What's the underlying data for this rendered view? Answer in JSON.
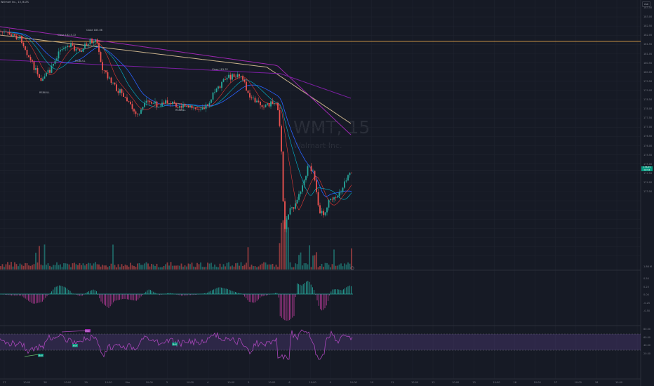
{
  "header": {
    "title": "Walmart Inc., 15, BATS",
    "currency_button": "USD"
  },
  "watermark": {
    "symbol": "WMT, 15",
    "name": "Walmart Inc."
  },
  "price_axis": {
    "labels": [
      "183.50",
      "183.00",
      "182.50",
      "182.00",
      "181.50",
      "181.00",
      "180.50",
      "180.00",
      "179.50",
      "179.00",
      "178.50",
      "178.00",
      "177.50",
      "177.00",
      "176.50",
      "176.00",
      "175.50",
      "175.00",
      "174.50",
      "174.00",
      "173.50"
    ],
    "last_price": "176.35",
    "last_price_sub": "02:54"
  },
  "volume_axis": {
    "labels": [
      "1.86 M"
    ]
  },
  "macd_axis": {
    "labels": [
      "0.50",
      "0.25",
      "0.00",
      "-0.25",
      "-0.50"
    ]
  },
  "rsi_axis": {
    "labels": [
      "80.00",
      "60.00",
      "40.00",
      "20.00"
    ]
  },
  "time_axis": {
    "labels": [
      "27",
      "10:00",
      "28",
      "10:00",
      "29",
      "10:00",
      "Mar",
      "10:00",
      "3",
      "10:00",
      "4",
      "10:00",
      "5",
      "10:00",
      "6",
      "10:00",
      "9",
      "10:00",
      "10",
      "11",
      "10:00",
      "12",
      "10:00",
      "13",
      "10:00",
      "16",
      "10:00",
      "17",
      "10:00",
      "18",
      "10:00"
    ]
  },
  "annotations": [
    {
      "text": "Close 182.5.72",
      "id": "ann-1"
    },
    {
      "text": "Close 183.06",
      "id": "ann-2"
    },
    {
      "text": "RSIBULL",
      "id": "ann-3"
    },
    {
      "text": "RSIBULL",
      "id": "ann-4"
    },
    {
      "text": "RSIBULL",
      "id": "ann-5"
    },
    {
      "text": "Close 181.52",
      "id": "ann-6"
    }
  ],
  "rsi_tags": [
    {
      "text": "Bull",
      "color": "#089981"
    },
    {
      "text": "Bull",
      "color": "#089981"
    },
    {
      "text": "Bull",
      "color": "#089981"
    },
    {
      "text": "Bear",
      "color": "#9c27b0"
    }
  ],
  "colors": {
    "background": "#161a25",
    "up": "#26a69a",
    "down": "#ef5350",
    "ma_blue": "#2962ff",
    "ma_cyan": "#00bcd4",
    "ma_purple": "#9c27b0",
    "ma_gold": "#c8b18b",
    "resistance": "#ffb74d",
    "rsi": "#ab47bc"
  }
}
